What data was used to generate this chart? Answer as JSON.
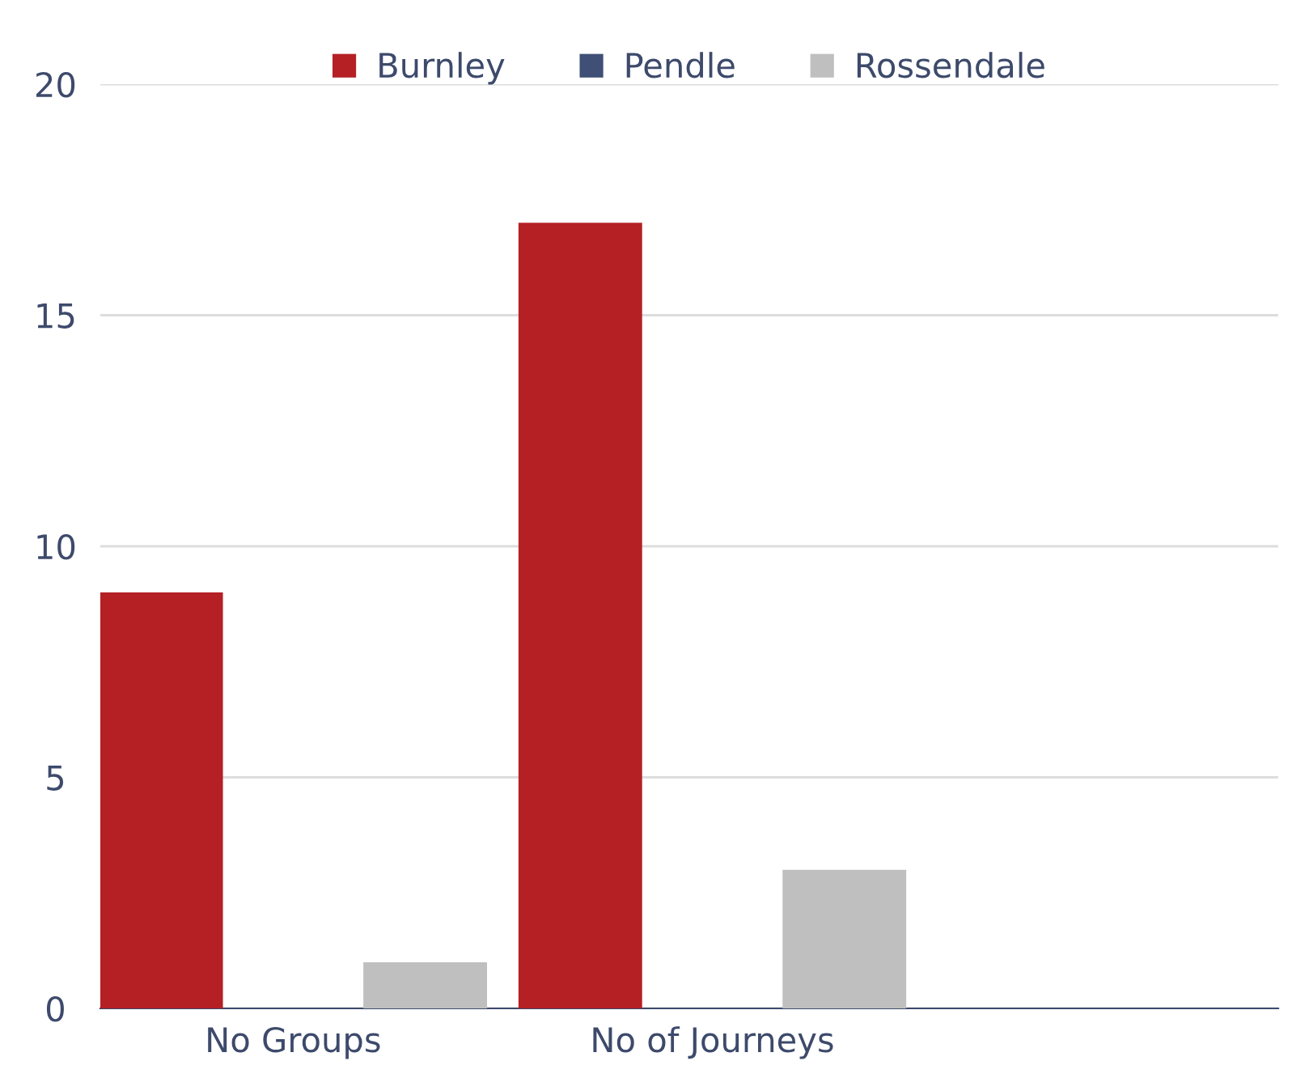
{
  "chart_data": {
    "type": "bar",
    "categories": [
      "No Groups",
      "No of Journeys",
      null
    ],
    "series": [
      {
        "name": "Burnley",
        "color": "#b52025",
        "values": [
          9,
          17,
          null
        ]
      },
      {
        "name": "Pendle",
        "color": "#3f4f75",
        "values": [
          0,
          0,
          null
        ]
      },
      {
        "name": "Rossendale",
        "color": "#bfbfbf",
        "values": [
          1,
          3,
          null
        ]
      }
    ],
    "ylim": [
      0,
      20
    ],
    "yticks": [
      0,
      5,
      10,
      15,
      20
    ],
    "grid": "y",
    "legend": "top"
  }
}
